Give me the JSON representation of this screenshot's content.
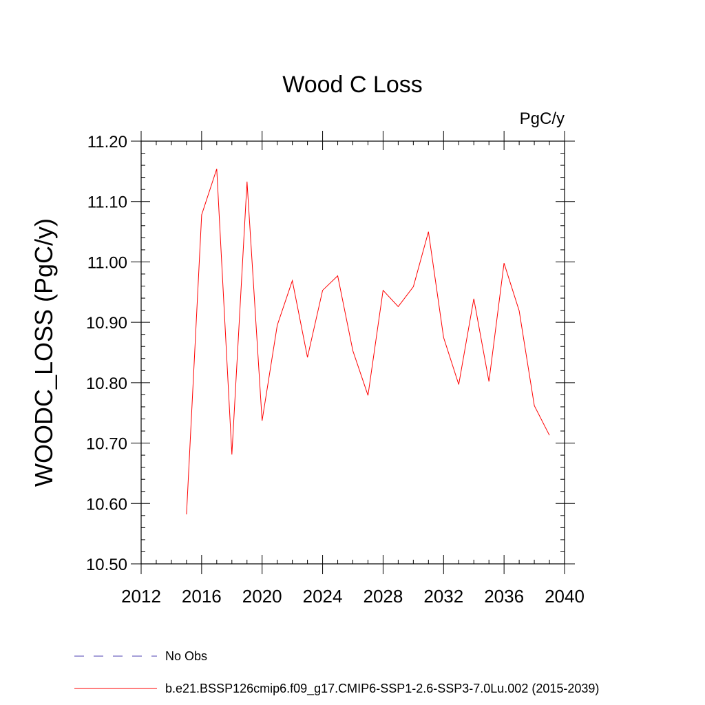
{
  "chart_data": {
    "type": "line",
    "title": "Wood C Loss",
    "units": "PgC/y",
    "ylabel": "WOODC_LOSS  (PgC/y)",
    "xlabel": "",
    "xlim": [
      2012,
      2040
    ],
    "ylim": [
      10.5,
      11.2
    ],
    "x_ticks": [
      2012,
      2016,
      2020,
      2024,
      2028,
      2032,
      2036,
      2040
    ],
    "x_tick_labels": [
      "2012",
      "2016",
      "2020",
      "2024",
      "2028",
      "2032",
      "2036",
      "2040"
    ],
    "y_ticks": [
      10.5,
      10.6,
      10.7,
      10.8,
      10.9,
      11.0,
      11.1,
      11.2
    ],
    "y_tick_labels": [
      "10.50",
      "10.60",
      "10.70",
      "10.80",
      "10.90",
      "11.00",
      "11.10",
      "11.20"
    ],
    "series": [
      {
        "name": "b.e21.BSSP126cmip6.f09_g17.CMIP6-SSP1-2.6-SSP3-7.0Lu.002 (2015-2039)",
        "color": "#ff0000",
        "x": [
          2015,
          2016,
          2017,
          2018,
          2019,
          2020,
          2021,
          2022,
          2023,
          2024,
          2025,
          2026,
          2027,
          2028,
          2029,
          2030,
          2031,
          2032,
          2033,
          2034,
          2035,
          2036,
          2037,
          2038,
          2039
        ],
        "values": [
          10.582,
          11.078,
          11.154,
          10.681,
          11.133,
          10.737,
          10.895,
          10.969,
          10.842,
          10.953,
          10.977,
          10.853,
          10.779,
          10.953,
          10.926,
          10.959,
          11.05,
          10.875,
          10.797,
          10.939,
          10.802,
          10.998,
          10.919,
          10.762,
          10.713
        ]
      }
    ],
    "legend": [
      {
        "label": "No Obs",
        "style": "dashed",
        "color": "#4b3fb0"
      },
      {
        "label": "b.e21.BSSP126cmip6.f09_g17.CMIP6-SSP1-2.6-SSP3-7.0Lu.002 (2015-2039)",
        "style": "solid",
        "color": "#ff0000"
      }
    ]
  }
}
